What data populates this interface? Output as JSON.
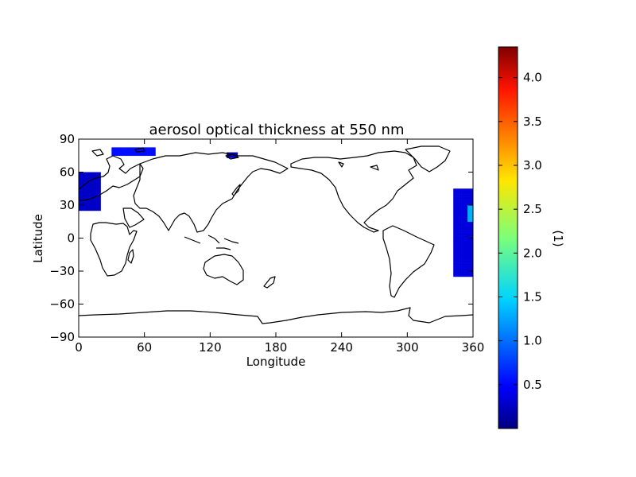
{
  "chart_data": {
    "type": "heatmap",
    "title": "aerosol optical thickness at 550 nm",
    "xlabel": "Longitude",
    "ylabel": "Latitude",
    "xlim": [
      0,
      360
    ],
    "ylim": [
      -90,
      90
    ],
    "xticks": [
      0,
      60,
      120,
      180,
      240,
      300,
      360
    ],
    "yticks": [
      -90,
      -60,
      -30,
      0,
      30,
      60,
      90
    ],
    "xtick_labels": [
      "0",
      "60",
      "120",
      "180",
      "240",
      "300",
      "360"
    ],
    "ytick_labels": [
      "−90",
      "−60",
      "−30",
      "0",
      "30",
      "60",
      "90"
    ],
    "colorbar": {
      "label": "(1)",
      "range": [
        0.0,
        4.35
      ],
      "ticks": [
        0.5,
        1.0,
        1.5,
        2.0,
        2.5,
        3.0,
        3.5,
        4.0
      ],
      "tick_labels": [
        "0.5",
        "1.0",
        "1.5",
        "2.0",
        "2.5",
        "3.0",
        "3.5",
        "4.0"
      ],
      "colormap": "jet"
    },
    "coastlines": "world map, 0–360 longitude",
    "grid": false,
    "data_regions": [
      {
        "region": "eastern North Atlantic / Europe coast",
        "lon": [
          0,
          18
        ],
        "lat": [
          25,
          60
        ],
        "value": 0.3
      },
      {
        "region": "central-eastern Atlantic strip",
        "lon": [
          342,
          360
        ],
        "lat": [
          -35,
          45
        ],
        "value": 0.4
      },
      {
        "region": "equatorial Atlantic (Gulf of Guinea)",
        "lon": [
          355,
          360
        ],
        "lat": [
          15,
          30
        ],
        "value": 1.3
      },
      {
        "region": "Arctic scattered cells",
        "lon": [
          30,
          70
        ],
        "lat": [
          75,
          82
        ],
        "value": 0.6
      },
      {
        "region": "Sea of Okhotsk",
        "lon": [
          135,
          145
        ],
        "lat": [
          73,
          77
        ],
        "value": 0.3
      }
    ]
  }
}
